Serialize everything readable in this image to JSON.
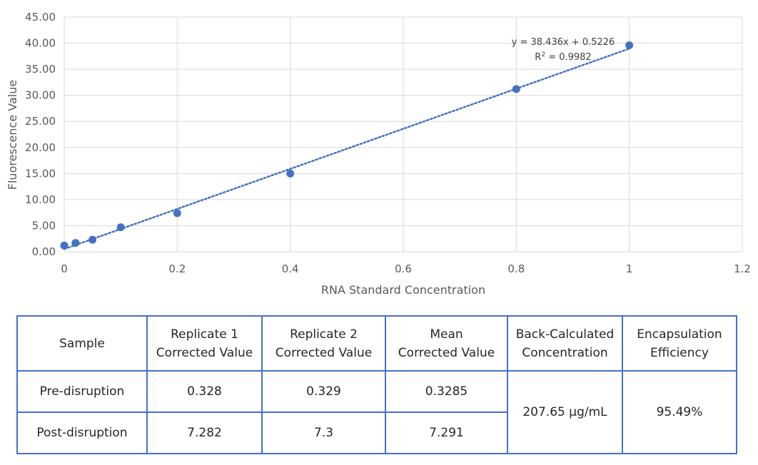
{
  "chart_data": {
    "type": "scatter",
    "xlabel": "RNA Standard Concentration",
    "ylabel": "Fluorescence Value",
    "xlim": [
      0,
      1.2
    ],
    "ylim": [
      0,
      45
    ],
    "x_ticks": [
      0,
      0.2,
      0.4,
      0.6,
      0.8,
      1,
      1.2
    ],
    "x_tick_labels": [
      "0",
      "0.2",
      "0.4",
      "0.6",
      "0.8",
      "1",
      "1.2"
    ],
    "y_ticks": [
      0,
      5,
      10,
      15,
      20,
      25,
      30,
      35,
      40,
      45
    ],
    "y_tick_labels": [
      "0.00",
      "5.00",
      "10.00",
      "15.00",
      "20.00",
      "25.00",
      "30.00",
      "35.00",
      "40.00",
      "45.00"
    ],
    "grid": true,
    "series": [
      {
        "x": [
          0,
          0.02,
          0.05,
          0.1,
          0.2,
          0.4,
          0.8,
          1
        ],
        "y": [
          1.2,
          1.7,
          2.3,
          4.7,
          7.4,
          15.0,
          31.2,
          39.6
        ],
        "color": "#4472c4"
      }
    ],
    "trendline": {
      "slope": 38.436,
      "intercept": 0.5226,
      "x_range": [
        0,
        1
      ],
      "style": "dotted",
      "color": "#4472c4",
      "equation": "y = 38.436x + 0.5226",
      "r_squared_prefix": "R",
      "r_squared_exp": "2",
      "r_squared_value": " = 0.9982"
    }
  },
  "table": {
    "headers": {
      "sample": "Sample",
      "rep1": [
        "Replicate 1",
        "Corrected Value"
      ],
      "rep2": [
        "Replicate 2",
        "Corrected Value"
      ],
      "mean": [
        "Mean",
        "Corrected Value"
      ],
      "back": [
        "Back-Calculated",
        "Concentration"
      ],
      "enc": [
        "Encapsulation",
        "Efficiency"
      ]
    },
    "rows": [
      {
        "sample": "Pre-disruption",
        "rep1": "0.328",
        "rep2": "0.329",
        "mean": "0.3285"
      },
      {
        "sample": "Post-disruption",
        "rep1": "7.282",
        "rep2": "7.3",
        "mean": "7.291"
      }
    ],
    "back_calculated": "207.65 μg/mL",
    "encapsulation": "95.49%"
  },
  "colors": {
    "accent": "#4472c4",
    "grid": "#d9d9d9",
    "text": "#595959"
  }
}
